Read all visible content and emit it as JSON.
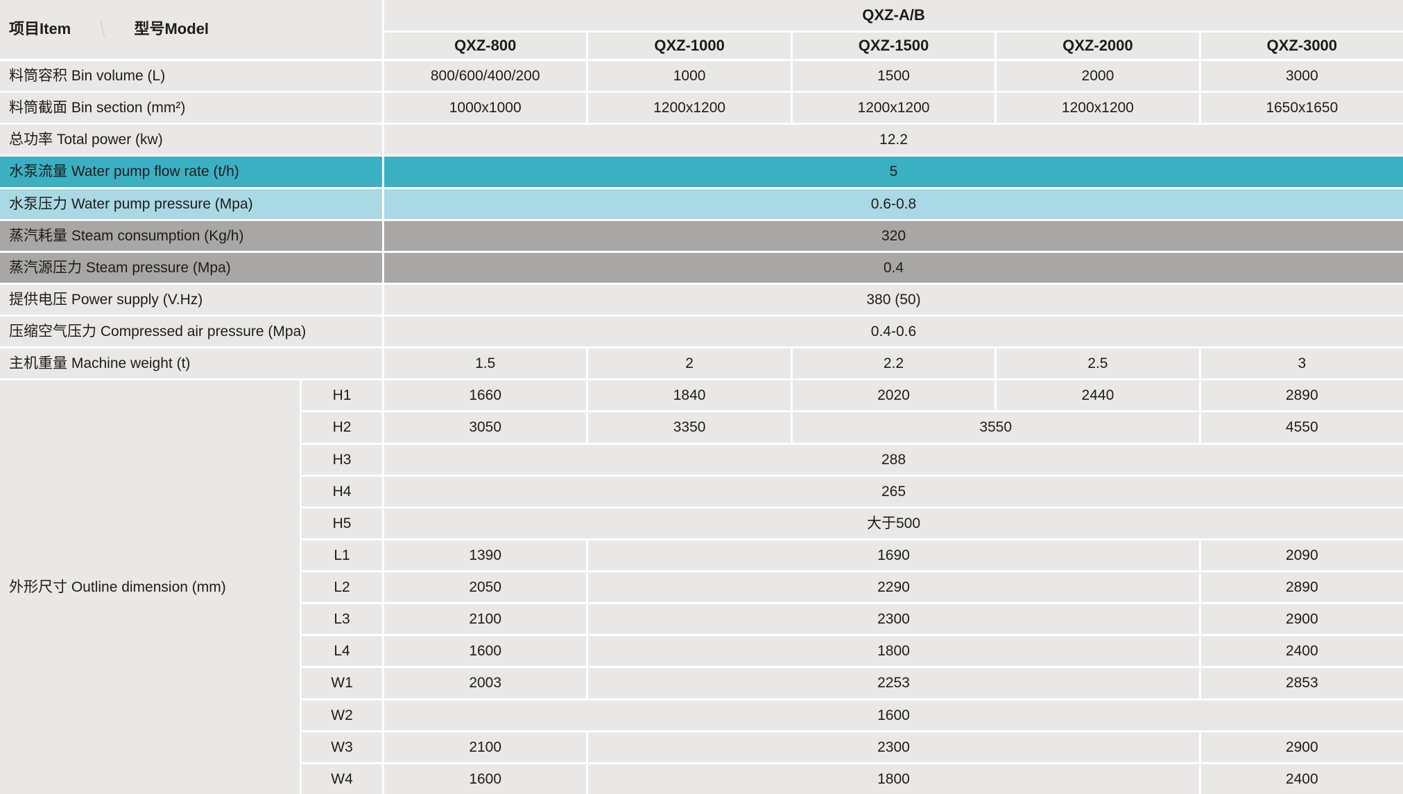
{
  "table": {
    "corner": {
      "item_label": "项目Item",
      "separator": "\\",
      "model_label": "型号Model"
    },
    "group_header": "QXZ-A/B",
    "columns": [
      "QXZ-800",
      "QXZ-1000",
      "QXZ-1500",
      "QXZ-2000",
      "QXZ-3000"
    ],
    "colors": {
      "cell_background": "#e9e8e6",
      "grid_lines": "#ffffff",
      "text": "#1e1c1a",
      "teal_row": "#3cb0c3",
      "light_blue_row": "#a9d9e4",
      "gray_row": "#a8a7a5"
    },
    "rows": [
      {
        "label": "料筒容积 Bin volume (L)",
        "cells": [
          "800/600/400/200",
          "1000",
          "1500",
          "2000",
          "3000"
        ]
      },
      {
        "label": "料筒截面 Bin section (mm²)",
        "cells": [
          "1000x1000",
          "1200x1200",
          "1200x1200",
          "1200x1200",
          "1650x1650"
        ]
      },
      {
        "label": "总功率 Total power (kw)",
        "value": "12.2",
        "span": 5
      },
      {
        "label": "水泵流量 Water pump flow rate (t/h)",
        "value": "5",
        "span": 5,
        "highlight": "teal"
      },
      {
        "label": "水泵压力 Water pump pressure (Mpa)",
        "value": "0.6-0.8",
        "span": 5,
        "highlight": "light_blue"
      },
      {
        "label": "蒸汽耗量 Steam consumption (Kg/h)",
        "value": "320",
        "span": 5,
        "highlight": "gray"
      },
      {
        "label": "蒸汽源压力 Steam pressure (Mpa)",
        "value": "0.4",
        "span": 5,
        "highlight": "gray"
      },
      {
        "label": "提供电压 Power supply (V.Hz)",
        "value": "380 (50)",
        "span": 5
      },
      {
        "label": "压缩空气压力 Compressed air pressure (Mpa)",
        "value": "0.4-0.6",
        "span": 5
      },
      {
        "label": "主机重量 Machine weight (t)",
        "cells": [
          "1.5",
          "2",
          "2.2",
          "2.5",
          "3"
        ]
      }
    ],
    "dim": {
      "label": "外形尺寸 Outline dimension (mm)",
      "rows": [
        {
          "sub": "H1",
          "cells": [
            {
              "v": "1660",
              "span": 1
            },
            {
              "v": "1840",
              "span": 1
            },
            {
              "v": "2020",
              "span": 1
            },
            {
              "v": "2440",
              "span": 1
            },
            {
              "v": "2890",
              "span": 1
            }
          ]
        },
        {
          "sub": "H2",
          "cells": [
            {
              "v": "3050",
              "span": 1
            },
            {
              "v": "3350",
              "span": 1
            },
            {
              "v": "3550",
              "span": 2
            },
            {
              "v": "4550",
              "span": 1
            }
          ]
        },
        {
          "sub": "H3",
          "cells": [
            {
              "v": "288",
              "span": 5
            }
          ]
        },
        {
          "sub": "H4",
          "cells": [
            {
              "v": "265",
              "span": 5
            }
          ]
        },
        {
          "sub": "H5",
          "cells": [
            {
              "v": "大于500",
              "span": 5
            }
          ]
        },
        {
          "sub": "L1",
          "cells": [
            {
              "v": "1390",
              "span": 1
            },
            {
              "v": "1690",
              "span": 3
            },
            {
              "v": "2090",
              "span": 1
            }
          ]
        },
        {
          "sub": "L2",
          "cells": [
            {
              "v": "2050",
              "span": 1
            },
            {
              "v": "2290",
              "span": 3
            },
            {
              "v": "2890",
              "span": 1
            }
          ]
        },
        {
          "sub": "L3",
          "cells": [
            {
              "v": "2100",
              "span": 1
            },
            {
              "v": "2300",
              "span": 3
            },
            {
              "v": "2900",
              "span": 1
            }
          ]
        },
        {
          "sub": "L4",
          "cells": [
            {
              "v": "1600",
              "span": 1
            },
            {
              "v": "1800",
              "span": 3
            },
            {
              "v": "2400",
              "span": 1
            }
          ]
        },
        {
          "sub": "W1",
          "cells": [
            {
              "v": "2003",
              "span": 1
            },
            {
              "v": "2253",
              "span": 3
            },
            {
              "v": "2853",
              "span": 1
            }
          ]
        },
        {
          "sub": "W2",
          "cells": [
            {
              "v": "1600",
              "span": 5
            }
          ]
        },
        {
          "sub": "W3",
          "cells": [
            {
              "v": "2100",
              "span": 1
            },
            {
              "v": "2300",
              "span": 3
            },
            {
              "v": "2900",
              "span": 1
            }
          ]
        },
        {
          "sub": "W4",
          "cells": [
            {
              "v": "1600",
              "span": 1
            },
            {
              "v": "1800",
              "span": 3
            },
            {
              "v": "2400",
              "span": 1
            }
          ]
        }
      ]
    }
  }
}
